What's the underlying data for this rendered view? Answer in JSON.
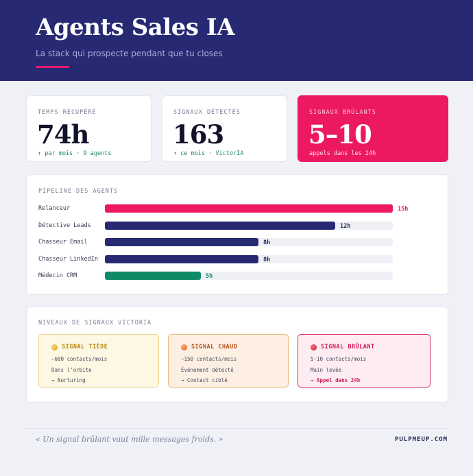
{
  "header": {
    "title": "Agents Sales IA",
    "subtitle": "La stack qui prospecte pendant que tu closes",
    "accent_color": "#e8196b",
    "background": "#272a72"
  },
  "stats": [
    {
      "label": "TEMPS RÉCUPÉRÉ",
      "value": "74h",
      "sub": "↑ par mois · 9 agents"
    },
    {
      "label": "SIGNAUX DÉTECTÉS",
      "value": "163",
      "sub": "↑ ce mois · VictorIA"
    },
    {
      "label": "SIGNAUX BRÛLANTS",
      "value": "5–10",
      "sub": "appels dans les 24h"
    }
  ],
  "pipeline": {
    "title": "PIPELINE DES AGENTS",
    "max": 15,
    "agents": [
      {
        "name": "Relanceur",
        "value": 15,
        "label": "15h",
        "color": "#ec1862"
      },
      {
        "name": "Détective Leads",
        "value": 12,
        "label": "12h",
        "color": "#272a72"
      },
      {
        "name": "Chasseur Email",
        "value": 8,
        "label": "8h",
        "color": "#272a72"
      },
      {
        "name": "Chasseur LinkedIn",
        "value": 8,
        "label": "8h",
        "color": "#272a72"
      },
      {
        "name": "Médecin CRM",
        "value": 5,
        "label": "5h",
        "color": "#0e8a67"
      }
    ]
  },
  "chart_data": {
    "type": "bar",
    "title": "PIPELINE DES AGENTS",
    "orientation": "horizontal",
    "categories": [
      "Relanceur",
      "Détective Leads",
      "Chasseur Email",
      "Chasseur LinkedIn",
      "Médecin CRM"
    ],
    "values": [
      15,
      12,
      8,
      8,
      5
    ],
    "unit": "h",
    "xlim": [
      0,
      15
    ]
  },
  "signals": {
    "title": "NIVEAUX DE SIGNAUX VICTORIA",
    "levels": [
      {
        "name": "SIGNAL TIÈDE",
        "volume": "~600 contacts/mois",
        "desc": "Dans l'orbite",
        "action": "→ Nurturing",
        "color": "#e0b020"
      },
      {
        "name": "SIGNAL CHAUD",
        "volume": "~150 contacts/mois",
        "desc": "Événement détecté",
        "action": "→ Contact ciblé",
        "color": "#ef7a3a"
      },
      {
        "name": "SIGNAL BRÛLANT",
        "volume": "5-10 contacts/mois",
        "desc": "Main levée",
        "action": "→ Appel dans 24h",
        "color": "#e0264a"
      }
    ]
  },
  "footer": {
    "quote": "« Un signal brûlant vaut mille messages froids. »",
    "brand": "PULPMEUP.COM"
  }
}
